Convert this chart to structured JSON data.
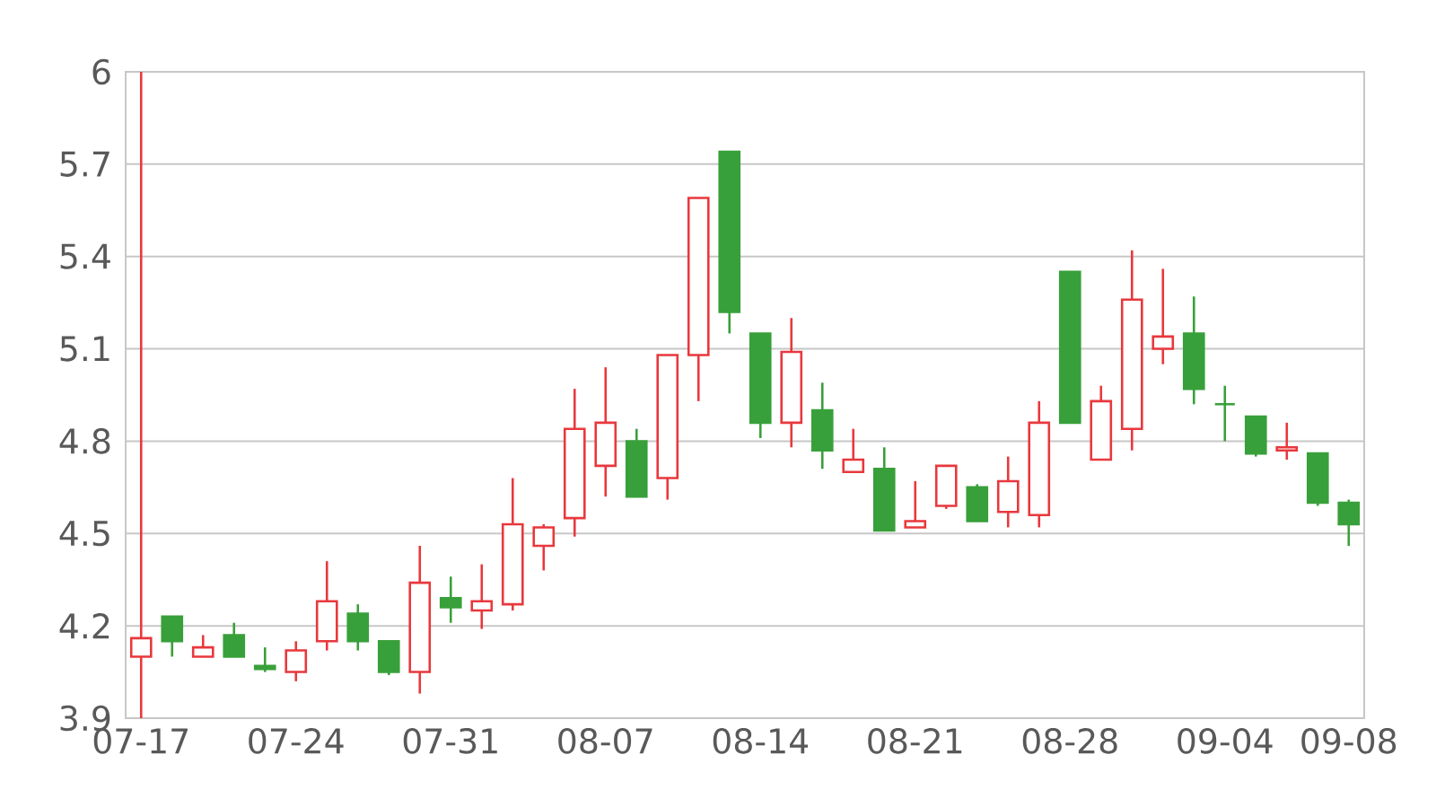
{
  "chart_data": {
    "type": "candlestick",
    "categories": [
      "07-17",
      null,
      null,
      null,
      null,
      "07-24",
      null,
      null,
      null,
      null,
      "07-31",
      null,
      null,
      null,
      null,
      "08-07",
      null,
      null,
      null,
      null,
      "08-14",
      null,
      null,
      null,
      null,
      "08-21",
      null,
      null,
      null,
      null,
      "08-28",
      null,
      null,
      null,
      null,
      "09-04",
      null,
      null,
      null,
      "09-08"
    ],
    "ohlc": [
      [
        4.1,
        6.0,
        3.9,
        4.16
      ],
      [
        4.23,
        4.23,
        4.1,
        4.15
      ],
      [
        4.1,
        4.17,
        4.1,
        4.13
      ],
      [
        4.17,
        4.21,
        4.1,
        4.1
      ],
      [
        4.07,
        4.13,
        4.05,
        4.06
      ],
      [
        4.05,
        4.15,
        4.02,
        4.12
      ],
      [
        4.15,
        4.41,
        4.12,
        4.28
      ],
      [
        4.24,
        4.27,
        4.12,
        4.15
      ],
      [
        4.15,
        4.15,
        4.04,
        4.05
      ],
      [
        4.05,
        4.46,
        3.98,
        4.34
      ],
      [
        4.29,
        4.36,
        4.21,
        4.26
      ],
      [
        4.25,
        4.4,
        4.19,
        4.28
      ],
      [
        4.27,
        4.68,
        4.25,
        4.53
      ],
      [
        4.46,
        4.53,
        4.38,
        4.52
      ],
      [
        4.55,
        4.97,
        4.49,
        4.84
      ],
      [
        4.72,
        5.04,
        4.62,
        4.86
      ],
      [
        4.8,
        4.84,
        4.62,
        4.62
      ],
      [
        4.68,
        5.08,
        4.61,
        5.08
      ],
      [
        5.08,
        5.59,
        4.93,
        5.59
      ],
      [
        5.74,
        5.74,
        5.15,
        5.22
      ],
      [
        5.15,
        5.15,
        4.81,
        4.86
      ],
      [
        4.86,
        5.2,
        4.78,
        5.09
      ],
      [
        4.9,
        4.99,
        4.71,
        4.77
      ],
      [
        4.7,
        4.84,
        4.7,
        4.74
      ],
      [
        4.71,
        4.78,
        4.51,
        4.51
      ],
      [
        4.52,
        4.67,
        4.52,
        4.54
      ],
      [
        4.59,
        4.72,
        4.58,
        4.72
      ],
      [
        4.65,
        4.66,
        4.54,
        4.54
      ],
      [
        4.57,
        4.75,
        4.52,
        4.67
      ],
      [
        4.56,
        4.93,
        4.52,
        4.86
      ],
      [
        5.35,
        5.35,
        4.86,
        4.86
      ],
      [
        4.74,
        4.98,
        4.74,
        4.93
      ],
      [
        4.84,
        5.42,
        4.77,
        5.26
      ],
      [
        5.1,
        5.36,
        5.05,
        5.14
      ],
      [
        5.15,
        5.27,
        4.92,
        4.97
      ],
      [
        4.92,
        4.98,
        4.8,
        4.92
      ],
      [
        4.88,
        4.88,
        4.75,
        4.76
      ],
      [
        4.77,
        4.86,
        4.74,
        4.78
      ],
      [
        4.76,
        4.76,
        4.59,
        4.6
      ],
      [
        4.6,
        4.61,
        4.46,
        4.53
      ]
    ],
    "colors": [
      "#e8383d",
      "#38a03a",
      "#e8383d",
      "#38a03a",
      "#38a03a",
      "#e8383d",
      "#e8383d",
      "#38a03a",
      "#38a03a",
      "#e8383d",
      "#38a03a",
      "#e8383d",
      "#e8383d",
      "#e8383d",
      "#e8383d",
      "#e8383d",
      "#38a03a",
      "#e8383d",
      "#e8383d",
      "#38a03a",
      "#38a03a",
      "#e8383d",
      "#38a03a",
      "#e8383d",
      "#38a03a",
      "#e8383d",
      "#e8383d",
      "#38a03a",
      "#e8383d",
      "#e8383d",
      "#38a03a",
      "#e8383d",
      "#e8383d",
      "#e8383d",
      "#38a03a",
      "#38a03a",
      "#38a03a",
      "#e8383d",
      "#38a03a",
      "#38a03a"
    ],
    "ylim": [
      3.9,
      6
    ],
    "yticks": [
      3.9,
      4.2,
      4.5,
      4.8,
      5.1,
      5.4,
      5.7,
      6
    ],
    "grid": "y"
  }
}
